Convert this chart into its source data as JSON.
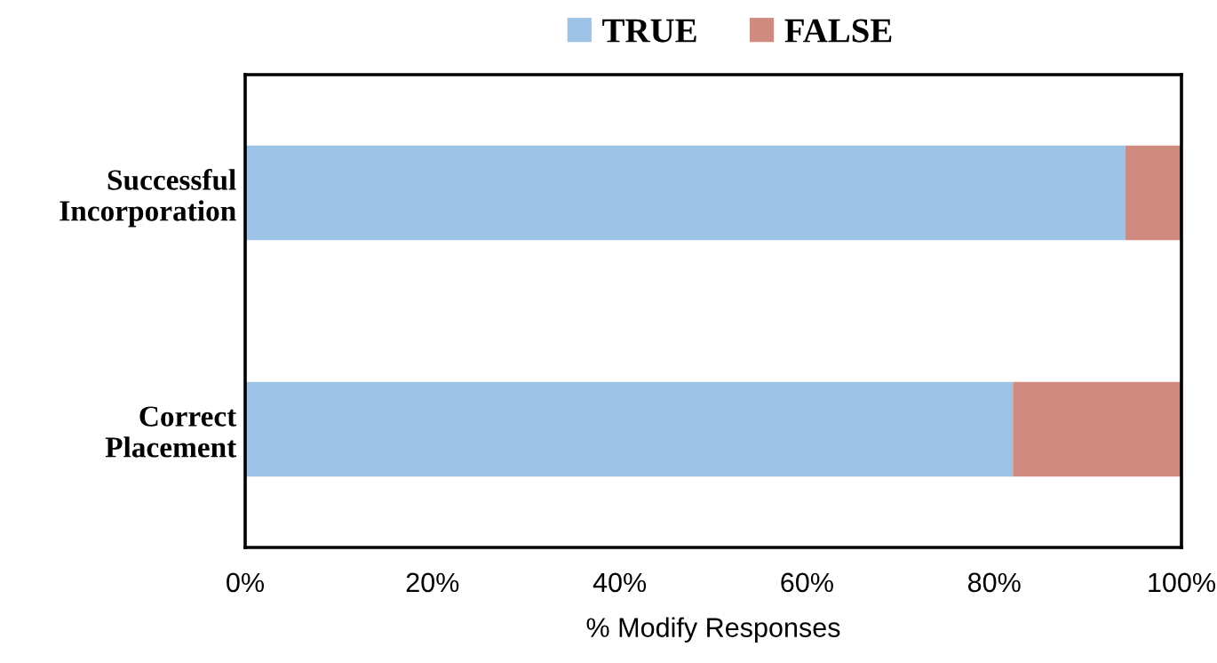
{
  "chart_data": {
    "type": "bar",
    "orientation": "horizontal",
    "stacked": true,
    "xlabel": "% Modify Responses",
    "categories": [
      "Successful\nIncorporation",
      "Correct\nPlacement"
    ],
    "series": [
      {
        "name": "TRUE",
        "color": "#9dc3e6",
        "values": [
          94,
          82
        ]
      },
      {
        "name": "FALSE",
        "color": "#d08b80",
        "values": [
          6,
          18
        ]
      }
    ],
    "xlim": [
      0,
      100
    ],
    "xticks": [
      {
        "value": 0,
        "label": "0%"
      },
      {
        "value": 20,
        "label": "20%"
      },
      {
        "value": 40,
        "label": "40%"
      },
      {
        "value": 60,
        "label": "60%"
      },
      {
        "value": 80,
        "label": "80%"
      },
      {
        "value": 100,
        "label": "100%"
      }
    ],
    "grid": false,
    "legend": "top"
  }
}
